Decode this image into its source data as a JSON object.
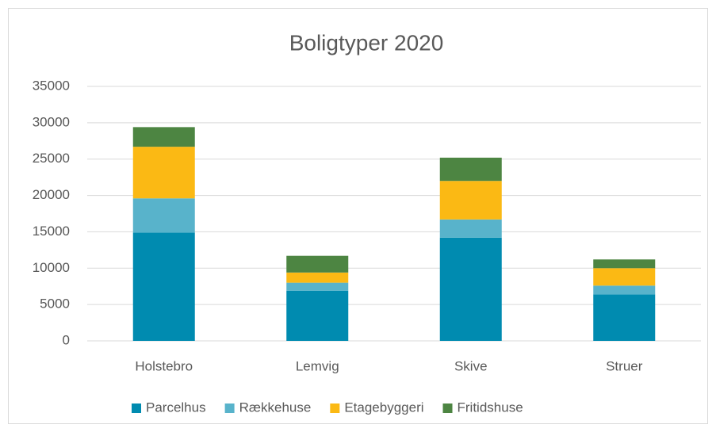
{
  "chart_data": {
    "type": "stacked_bar",
    "title": "Boligtyper 2020",
    "categories": [
      "Holstebro",
      "Lemvig",
      "Skive",
      "Struer"
    ],
    "series": [
      {
        "name": "Parcelhus",
        "color": "#008bb0",
        "values": [
          14900,
          6900,
          14200,
          6400
        ]
      },
      {
        "name": "Rækkehuse",
        "color": "#58b3cb",
        "values": [
          4700,
          1100,
          2500,
          1200
        ]
      },
      {
        "name": "Etagebyggeri",
        "color": "#fbb914",
        "values": [
          7100,
          1400,
          5300,
          2400
        ]
      },
      {
        "name": "Fritidshuse",
        "color": "#4d8542",
        "values": [
          2700,
          2300,
          3200,
          1200
        ]
      }
    ],
    "ylim": [
      0,
      35000
    ],
    "yticks": [
      0,
      5000,
      10000,
      15000,
      20000,
      25000,
      30000,
      35000
    ],
    "grid": true,
    "legend": "bottom"
  }
}
